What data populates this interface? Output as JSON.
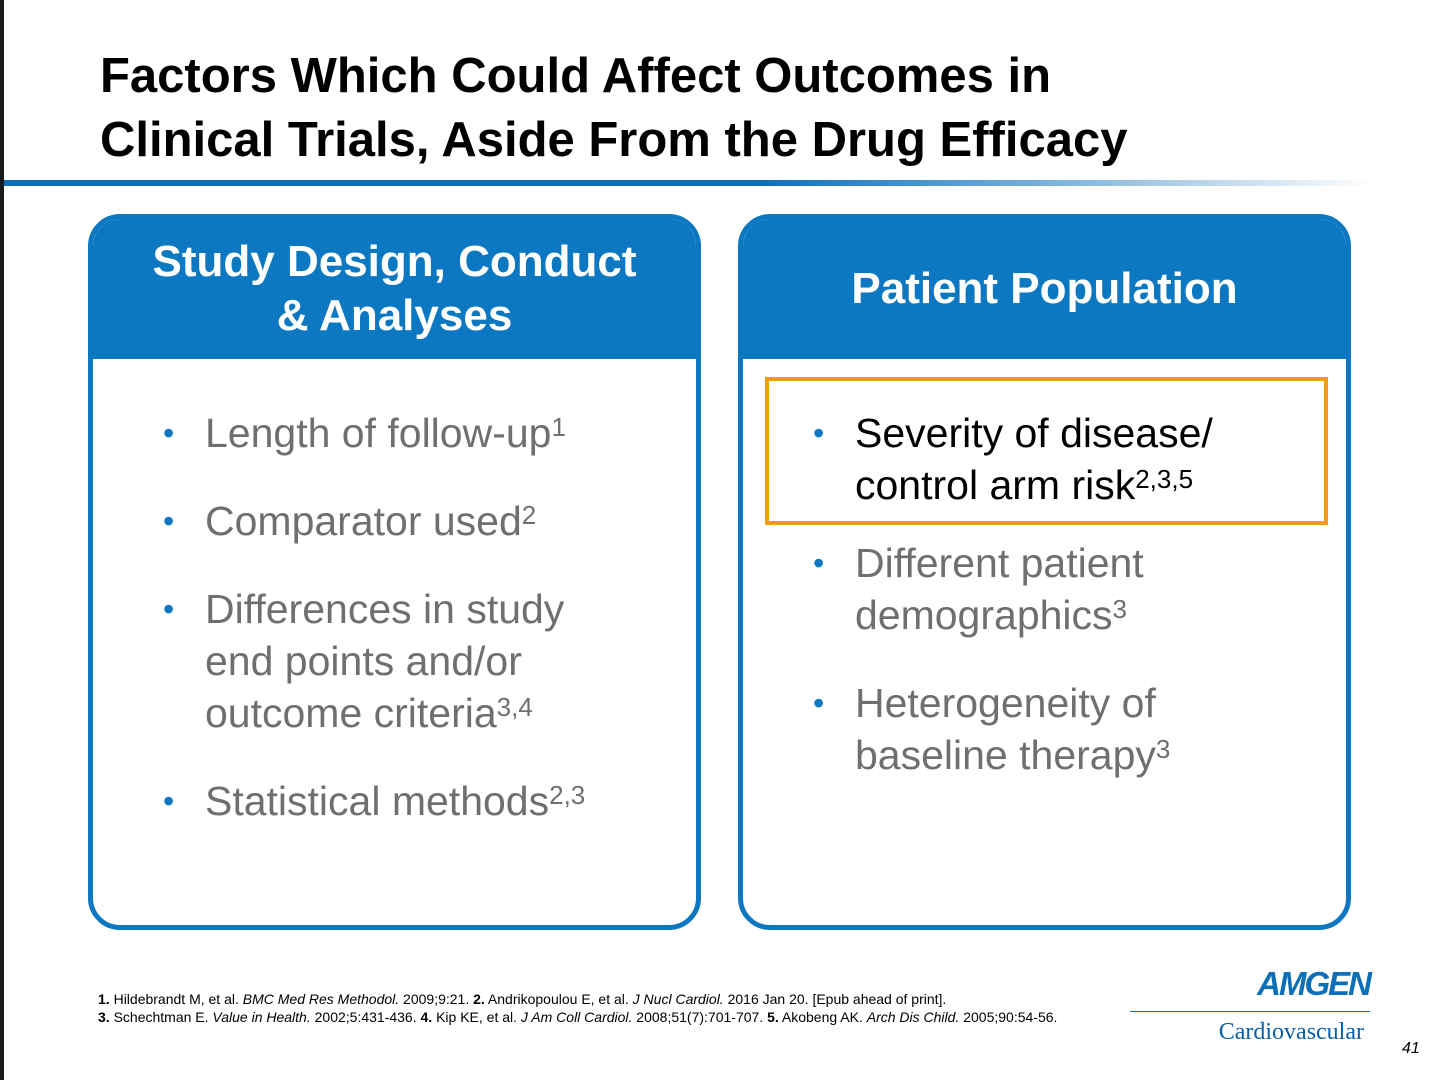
{
  "title": {
    "line1": "Factors Which Could Affect Outcomes in",
    "line2": "Clinical Trials, Aside From the Drug Efficacy"
  },
  "left_card": {
    "heading_line1": "Study Design, Conduct",
    "heading_line2": "& Analyses",
    "items": [
      {
        "lines": [
          "Length of follow-up"
        ],
        "sup": "1"
      },
      {
        "lines": [
          "Comparator used"
        ],
        "sup": "2"
      },
      {
        "lines": [
          "Differences in study",
          "end points and/or",
          "outcome criteria"
        ],
        "sup": "3,4"
      },
      {
        "lines": [
          "Statistical methods"
        ],
        "sup": "2,3"
      }
    ]
  },
  "right_card": {
    "heading": "Patient Population",
    "items": [
      {
        "lines": [
          "Severity of disease/",
          "control arm risk"
        ],
        "sup": "2,3,5"
      },
      {
        "lines": [
          "Different patient",
          "demographics"
        ],
        "sup": "3"
      },
      {
        "lines": [
          "Heterogeneity of",
          "baseline therapy"
        ],
        "sup": "3"
      }
    ]
  },
  "bullet_char": "•",
  "references": {
    "r1_num": "1.",
    "r1_author": " Hildebrandt M, et al.  ",
    "r1_journal": "BMC Med Res Methodol.",
    "r1_rest": " 2009;9:21. ",
    "r2_num": "2.",
    "r2_author": " Andrikopoulou E, et al. ",
    "r2_journal": "J Nucl Cardiol.",
    "r2_rest": " 2016 Jan 20. [Epub ahead of print].",
    "r3_num": "3.",
    "r3_author": " Schechtman E. ",
    "r3_journal": "Value in Health.",
    "r3_rest": " 2002;5:431-436. ",
    "r4_num": "4.",
    "r4_author": " Kip KE, et al. ",
    "r4_journal": "J Am Coll Cardiol.",
    "r4_rest": " 2008;51(7):701-707. ",
    "r5_num": "5.",
    "r5_author": " Akobeng AK. ",
    "r5_journal": "Arch Dis Child.",
    "r5_rest": " 2005;90:54-56."
  },
  "logo": {
    "word": "AMGEN",
    "sub": "Cardiovascular"
  },
  "page_number": "41",
  "colors": {
    "accent_blue": "#0c78c2",
    "highlight_orange": "#f39c12",
    "muted_text": "#6f6f6f"
  }
}
